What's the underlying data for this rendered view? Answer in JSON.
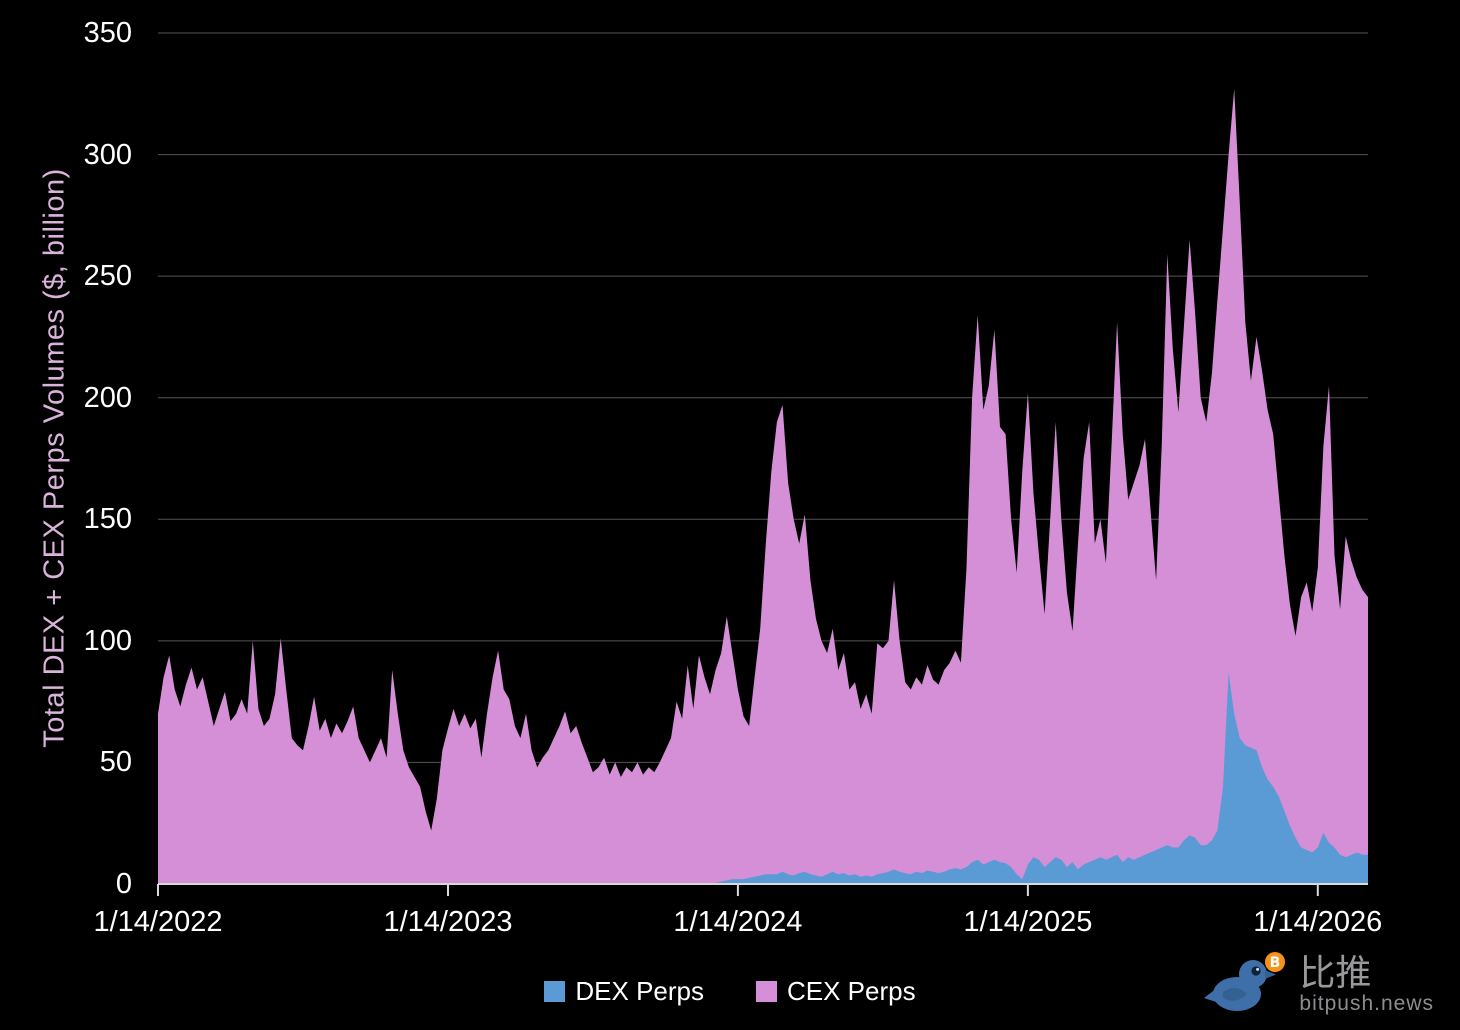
{
  "chart_data": {
    "type": "area",
    "stacked": true,
    "title": "",
    "ylabel": "Total DEX + CEX Perps Volumes ($, billion)",
    "xlabel": "",
    "ylim": [
      0,
      350
    ],
    "y_ticks": [
      0,
      50,
      100,
      150,
      200,
      250,
      300,
      350
    ],
    "x_tick_labels": [
      "1/14/2022",
      "1/14/2023",
      "1/14/2024",
      "1/14/2025",
      "1/14/2026"
    ],
    "x_unit": "weekly",
    "grid": true,
    "legend_position": "bottom",
    "background_color": "#000000",
    "series": [
      {
        "name": "DEX Perps",
        "color": "#5b9bd5",
        "values": [
          0,
          0,
          0,
          0,
          0,
          0,
          0,
          0,
          0,
          0,
          0,
          0,
          0,
          0,
          0,
          0,
          0,
          0,
          0,
          0,
          0,
          0,
          0,
          0,
          0,
          0,
          0,
          0,
          0,
          0,
          0,
          0,
          0,
          0,
          0,
          0,
          0,
          0,
          0,
          0,
          0,
          0,
          0,
          0,
          0,
          0,
          0,
          0,
          0,
          0,
          0,
          0,
          0,
          0,
          0,
          0,
          0,
          0,
          0,
          0,
          0,
          0,
          0,
          0,
          0,
          0,
          0,
          0,
          0,
          0,
          0,
          0,
          0,
          0,
          0,
          0,
          0,
          0,
          0,
          0,
          0,
          0,
          0,
          0,
          0,
          0,
          0,
          0,
          0,
          0,
          0,
          0,
          0,
          0,
          0,
          0,
          0,
          0,
          0,
          0,
          0.5,
          1,
          1.5,
          2,
          2,
          2,
          2.5,
          3,
          3.5,
          4,
          4,
          4,
          5,
          4,
          3.5,
          4.5,
          5,
          4,
          3.5,
          3,
          4,
          5,
          4,
          4.5,
          3.5,
          4,
          3,
          3.5,
          3,
          4,
          4.5,
          5,
          6,
          5,
          4.5,
          4,
          5,
          4.5,
          5.5,
          5,
          4.5,
          5,
          6,
          6.5,
          6,
          7,
          9,
          10,
          8,
          9,
          10,
          9,
          8.5,
          7,
          4,
          2,
          8,
          11,
          10,
          7,
          9,
          11,
          10,
          7,
          9,
          6,
          8,
          9,
          10,
          11,
          10,
          11,
          12,
          9,
          11,
          10,
          11,
          12,
          13,
          14,
          15,
          16,
          15,
          15,
          18,
          20,
          19,
          16,
          16,
          18,
          22,
          40,
          87,
          70,
          60,
          57,
          56,
          55,
          48,
          43,
          40,
          36,
          30,
          24,
          19,
          15,
          14,
          13,
          15,
          21,
          17,
          15,
          12,
          11,
          12,
          13,
          12,
          12
        ]
      },
      {
        "name": "CEX Perps",
        "color": "#d48fd6",
        "values": [
          70,
          85,
          94,
          80,
          73,
          82,
          89,
          80,
          85,
          75,
          65,
          72,
          79,
          67,
          70,
          76,
          70,
          100,
          72,
          65,
          68,
          78,
          101,
          80,
          60,
          57,
          55,
          65,
          77,
          63,
          68,
          60,
          66,
          62,
          67,
          73,
          60,
          55,
          50,
          55,
          60,
          52,
          88,
          70,
          55,
          48,
          44,
          40,
          30,
          22,
          35,
          55,
          64,
          72,
          65,
          70,
          64,
          68,
          52,
          70,
          85,
          96,
          80,
          76,
          65,
          60,
          70,
          55,
          48,
          52,
          55,
          60,
          65,
          71,
          62,
          65,
          58,
          52,
          46,
          48,
          52,
          45,
          50,
          44,
          48,
          46,
          50,
          45,
          48,
          46,
          50,
          55,
          60,
          75,
          68,
          90,
          72,
          94,
          85,
          78,
          87.5,
          94,
          108.5,
          93,
          78,
          67,
          62.5,
          82,
          101.5,
          136,
          166,
          186,
          192,
          161,
          146.5,
          135.5,
          147,
          121,
          105.5,
          97,
          91,
          100,
          84,
          90.5,
          76.5,
          79,
          69,
          74.5,
          67,
          95,
          92.5,
          95,
          119,
          95,
          78.5,
          76,
          80,
          77.5,
          84.5,
          79,
          77.5,
          83,
          85,
          89.5,
          85,
          123,
          191,
          224,
          187,
          196,
          218,
          179,
          176.5,
          143,
          124,
          168,
          194,
          150,
          125,
          104,
          141,
          179,
          140,
          113,
          95,
          134,
          167,
          181,
          130,
          139,
          122,
          169,
          219,
          176,
          147,
          155,
          161,
          171,
          141,
          111,
          165,
          243,
          205,
          179,
          212,
          245,
          216,
          184,
          174,
          192,
          218,
          230,
          213,
          257,
          220,
          174,
          151,
          170,
          163,
          152,
          145,
          124,
          105,
          91,
          83,
          103,
          110,
          99,
          115,
          159,
          188,
          120,
          101,
          132,
          121,
          113,
          109,
          106
        ]
      }
    ]
  },
  "axis": {
    "tick_text_color": "#ffffff",
    "grid_color": "#545454",
    "axis_line_color": "#d9d9d9",
    "ylabel_color": "#d9b3da"
  },
  "legend": {
    "items": [
      {
        "label": "DEX Perps",
        "color": "#5b9bd5"
      },
      {
        "label": "CEX Perps",
        "color": "#d48fd6"
      }
    ]
  },
  "watermark": {
    "brand": "比推",
    "domain": "bitpush.news",
    "bird_color": "#3f6fa8",
    "coin_color": "#f7931a"
  }
}
